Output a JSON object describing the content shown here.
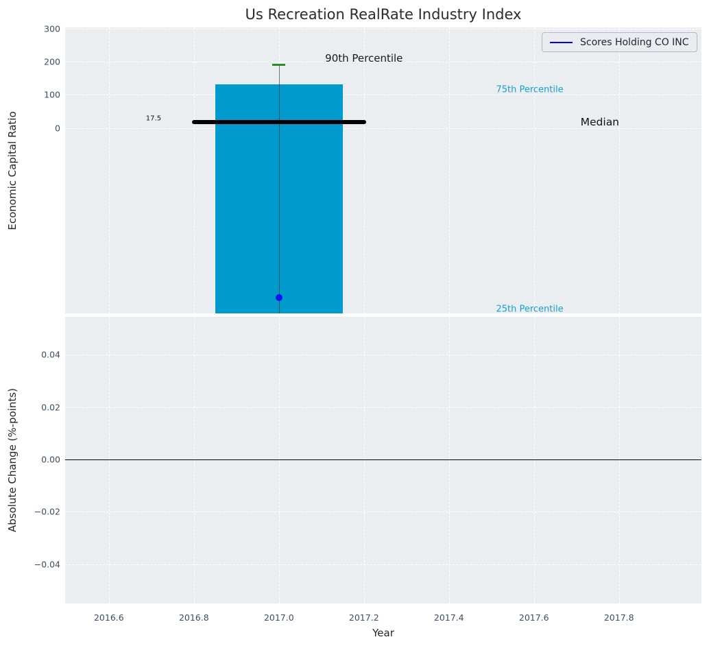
{
  "title": "Us Recreation RealRate Industry Index",
  "legend": {
    "label": "Scores Holding CO INC",
    "line_color": "#0000ee"
  },
  "chart_data": {
    "type": "bar",
    "title": "Us Recreation RealRate Industry Index",
    "panels": [
      {
        "name": "economic-capital-ratio",
        "ylabel": "Economic Capital Ratio",
        "xlim": [
          2016.497,
          2017.994
        ],
        "ylim": [
          -561,
          304
        ],
        "grid": true,
        "yticks": [
          {
            "value": 300,
            "label": "300"
          },
          {
            "value": 200,
            "label": "200"
          },
          {
            "value": 100,
            "label": "100"
          },
          {
            "value": 0,
            "label": "0"
          }
        ],
        "series": {
          "year": 2017,
          "bar": {
            "top_p75": 132,
            "bottom_p25": -561,
            "width_years": 0.3,
            "color": "#009acd"
          },
          "whisker": {
            "high": 190,
            "low": -561,
            "color": "#2d2d2d"
          },
          "p90_cap": {
            "value": 190,
            "color": "#2e8b2e"
          },
          "median": {
            "value": 17.5,
            "label": "17.5",
            "x0": 2016.795,
            "x1": 2017.205,
            "color": "#000000"
          },
          "company_point": {
            "name": "Scores Holding CO INC",
            "value": -513,
            "color": "#1111ee"
          }
        },
        "annotations": [
          {
            "id": "p90-label",
            "text": "90th Percentile",
            "x": 2017.2,
            "y": 210,
            "color": "#1a1a1a",
            "size": 15
          },
          {
            "id": "p75-label",
            "text": "75th Percentile",
            "x": 2017.59,
            "y": 115,
            "color": "#189fd3",
            "size": 13
          },
          {
            "id": "median-label",
            "text": "Median",
            "x": 2017.755,
            "y": 17,
            "color": "#111111",
            "size": 15.5
          },
          {
            "id": "p25-label",
            "text": "25th Percentile",
            "x": 2017.59,
            "y": -548,
            "color": "#189fd3",
            "size": 13
          },
          {
            "id": "median-value",
            "text": "17.5",
            "x": 2016.705,
            "y": 29,
            "color": "#111111",
            "size": 10
          }
        ]
      },
      {
        "name": "absolute-change",
        "ylabel": "Absolute Change (%-points)",
        "xlabel": "Year",
        "xlim": [
          2016.497,
          2017.994
        ],
        "ylim": [
          -0.055,
          0.0545
        ],
        "grid": true,
        "zero_line": 0.0,
        "yticks": [
          {
            "value": 0.04,
            "label": "0.04"
          },
          {
            "value": 0.02,
            "label": "0.02"
          },
          {
            "value": 0.0,
            "label": "0.00"
          },
          {
            "value": -0.02,
            "label": "−0.02"
          },
          {
            "value": -0.04,
            "label": "−0.04"
          }
        ],
        "xticks": [
          {
            "value": 2016.6,
            "label": "2016.6"
          },
          {
            "value": 2016.8,
            "label": "2016.8"
          },
          {
            "value": 2017.0,
            "label": "2017.0"
          },
          {
            "value": 2017.2,
            "label": "2017.2"
          },
          {
            "value": 2017.4,
            "label": "2017.4"
          },
          {
            "value": 2017.6,
            "label": "2017.6"
          },
          {
            "value": 2017.8,
            "label": "2017.8"
          }
        ]
      }
    ]
  }
}
